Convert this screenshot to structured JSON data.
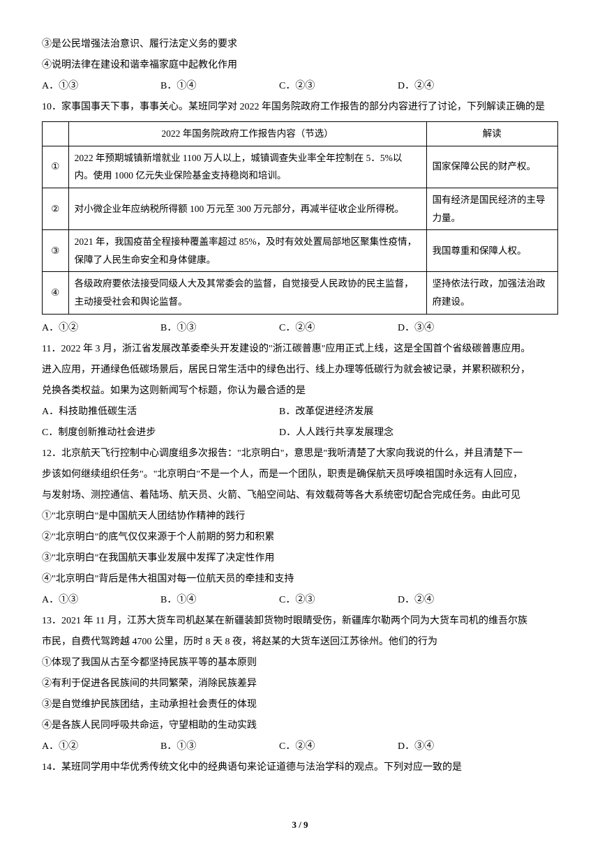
{
  "pre": {
    "stmt3": "③是公民增强法治意识、履行法定义务的要求",
    "stmt4": "④说明法律在建设和谐幸福家庭中起教化作用",
    "choiceA": "A．①③",
    "choiceB": "B．①④",
    "choiceC": "C．②③",
    "choiceD": "D．②④"
  },
  "q10": {
    "stem": "10．家事国事天下事，事事关心。某班同学对 2022 年国务院政府工作报告的部分内容进行了讨论，下列解读正确的是",
    "table": {
      "header_content": "2022 年国务院政府工作报告内容（节选）",
      "header_interp": "解读",
      "rows": [
        {
          "num": "①",
          "content": "2022 年预期城镇新增就业 1100 万人以上，城镇调查失业率全年控制在 5．5%以内。使用 1000 亿元失业保险基金支持稳岗和培训。",
          "interp": "国家保障公民的财产权。"
        },
        {
          "num": "②",
          "content": "对小微企业年应纳税所得额 100 万元至 300 万元部分，再减半征收企业所得税。",
          "interp": "国有经济是国民经济的主导力量。"
        },
        {
          "num": "③",
          "content": "2021 年，我国疫苗全程接种覆盖率超过 85%，及时有效处置局部地区聚集性疫情，保障了人民生命安全和身体健康。",
          "interp": "我国尊重和保障人权。"
        },
        {
          "num": "④",
          "content": "各级政府要依法接受同级人大及其常委会的监督，自觉接受人民政协的民主监督，主动接受社会和舆论监督。",
          "interp": "坚持依法行政，加强法治政府建设。"
        }
      ]
    },
    "choiceA": "A．①②",
    "choiceB": "B．①③",
    "choiceC": "C．②④",
    "choiceD": "D．③④"
  },
  "q11": {
    "line1": "11．2022 年 3 月，浙江省发展改革委牵头开发建设的\"浙江碳普惠\"应用正式上线，这是全国首个省级碳普惠应用。",
    "line2": "进入应用，开通绿色低碳场景后，居民日常生活中的绿色出行、线上办理等低碳行为就会被记录，并累积碳积分，",
    "line3": "兑换各类权益。如果为这则新闻写个标题，你认为最合适的是",
    "choiceA": "A．科技助推低碳生活",
    "choiceB": "B．改革促进经济发展",
    "choiceC": "C．制度创新推动社会进步",
    "choiceD": "D．人人践行共享发展理念"
  },
  "q12": {
    "line1": "12．北京航天飞行控制中心调度组多次报告：\"北京明白\"，意思是\"我听清楚了大家向我说的什么，并且清楚下一",
    "line2": "步该如何继续组织任务\"。\"北京明白\"不是一个人，而是一个团队，职责是确保航天员呼唤祖国时永远有人回应，",
    "line3": "与发射场、测控通信、着陆场、航天员、火箭、飞船空间站、有效载荷等各大系统密切配合完成任务。由此可见",
    "stmt1": "①\"北京明白\"是中国航天人团结协作精神的践行",
    "stmt2": "②\"北京明白\"的底气仅仅来源于个人前期的努力和积累",
    "stmt3": "③\"北京明白\"在我国航天事业发展中发挥了决定性作用",
    "stmt4": "④\"北京明白\"背后是伟大祖国对每一位航天员的牵挂和支持",
    "choiceA": "A．①③",
    "choiceB": "B．①④",
    "choiceC": "C．②③",
    "choiceD": "D．②④"
  },
  "q13": {
    "line1": "13．2021 年 11 月，江苏大货车司机赵某在新疆装卸货物时眼睛受伤，新疆库尔勒两个同为大货车司机的维吾尔族",
    "line2": "市民，自费代驾跨越 4700 公里，历时 8 天 8 夜，将赵某的大货车送回江苏徐州。他们的行为",
    "stmt1": "①体现了我国从古至今都坚持民族平等的基本原则",
    "stmt2": "②有利于促进各民族间的共同繁荣，消除民族差异",
    "stmt3": "③是自觉维护民族团结，主动承担社会责任的体现",
    "stmt4": "④是各族人民同呼吸共命运，守望相助的生动实践",
    "choiceA": "A．①②",
    "choiceB": "B．①③",
    "choiceC": "C．②④",
    "choiceD": "D．③④"
  },
  "q14": {
    "stem": "14．某班同学用中华优秀传统文化中的经典语句来论证道德与法治学科的观点。下列对应一致的是"
  },
  "pageNumber": "3 / 9"
}
